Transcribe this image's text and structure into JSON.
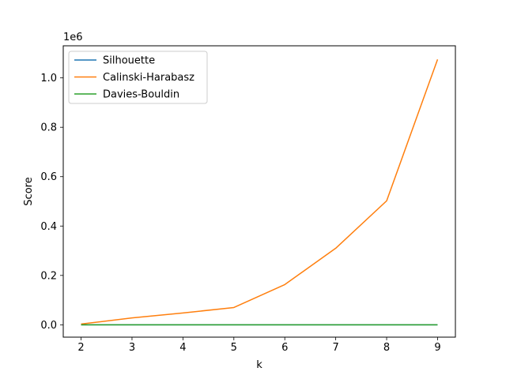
{
  "chart_data": {
    "type": "line",
    "title": "",
    "xlabel": "k",
    "ylabel": "Score",
    "y_offset_label": "1e6",
    "x": [
      2,
      3,
      4,
      5,
      6,
      7,
      8,
      9
    ],
    "xlim": [
      1.65,
      9.35
    ],
    "ylim": [
      -0.05,
      1.13
    ],
    "y_unit_multiplier": 1000000,
    "x_ticks": [
      2,
      3,
      4,
      5,
      6,
      7,
      8,
      9
    ],
    "x_tick_labels": [
      "2",
      "3",
      "4",
      "5",
      "6",
      "7",
      "8",
      "9"
    ],
    "y_ticks": [
      0.0,
      0.2,
      0.4,
      0.6,
      0.8,
      1.0
    ],
    "y_tick_labels": [
      "0.0",
      "0.2",
      "0.4",
      "0.6",
      "0.8",
      "1.0"
    ],
    "grid": false,
    "legend_position": "top-left",
    "series": [
      {
        "name": "Silhouette",
        "color": "#1f77b4",
        "values": [
          0.0,
          0.0,
          0.0,
          0.0,
          0.0,
          0.0,
          0.0,
          0.0
        ]
      },
      {
        "name": "Calinski-Harabasz",
        "color": "#ff7f0e",
        "values": [
          0.003,
          0.028,
          0.048,
          0.07,
          0.163,
          0.31,
          0.502,
          1.075
        ]
      },
      {
        "name": "Davies-Bouldin",
        "color": "#2ca02c",
        "values": [
          0.0,
          0.0,
          0.0,
          0.0,
          0.0,
          0.0,
          0.0,
          0.0
        ]
      }
    ]
  }
}
